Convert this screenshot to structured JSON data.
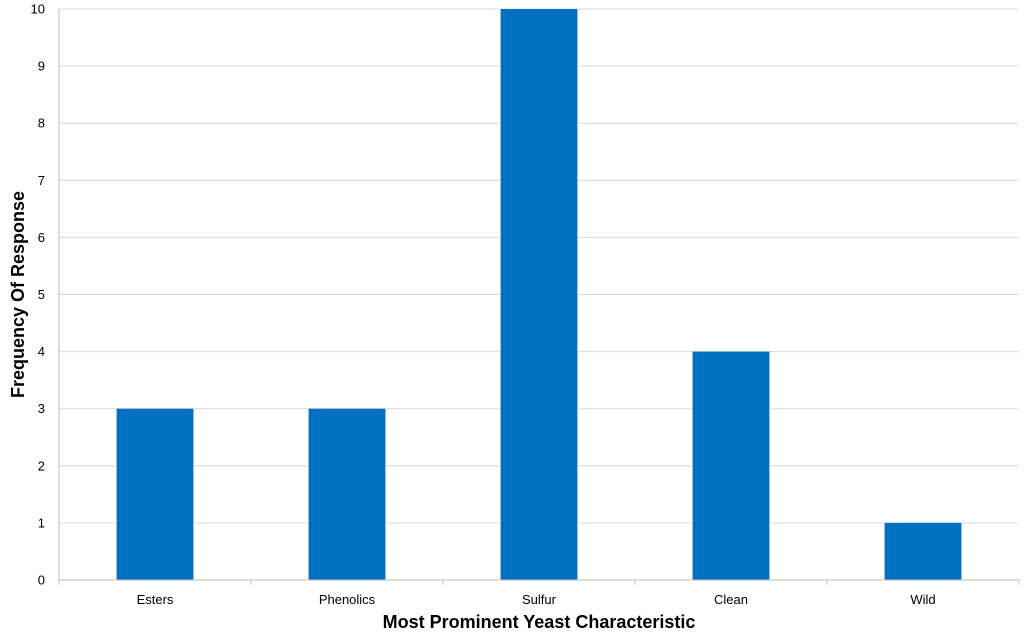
{
  "chart_data": {
    "type": "bar",
    "categories": [
      "Esters",
      "Phenolics",
      "Sulfur",
      "Clean",
      "Wild"
    ],
    "values": [
      3,
      3,
      10,
      4,
      1
    ],
    "title": "",
    "xlabel": "Most Prominent Yeast Characteristic",
    "ylabel": "Frequency Of Response",
    "ylim": [
      0,
      10
    ],
    "yticks": [
      0,
      1,
      2,
      3,
      4,
      5,
      6,
      7,
      8,
      9,
      10
    ],
    "grid": true,
    "legend": "none",
    "bar_color": "#0070C0"
  }
}
